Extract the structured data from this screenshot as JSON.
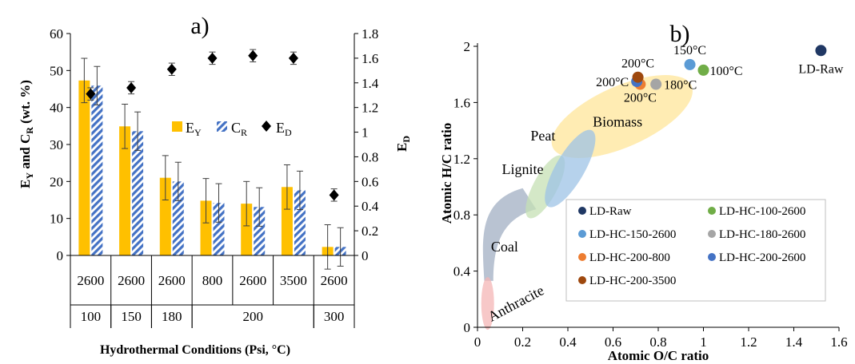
{
  "chart_data": [
    {
      "type": "bar",
      "panel_label": "a)",
      "xlabel": "Hydrothermal Conditions (Psi, °C)",
      "categories": [
        {
          "pressure": "2600",
          "temperature": "100"
        },
        {
          "pressure": "2600",
          "temperature": "150"
        },
        {
          "pressure": "2600",
          "temperature": "180"
        },
        {
          "pressure": "800",
          "temperature": "200"
        },
        {
          "pressure": "2600",
          "temperature": "200"
        },
        {
          "pressure": "3500",
          "temperature": "200"
        },
        {
          "pressure": "2600",
          "temperature": "300"
        }
      ],
      "temperature_groups": [
        "100",
        "150",
        "180",
        "200",
        "300"
      ],
      "ylabel_left": {
        "main": "E",
        "sub1": "Y",
        "mid": " and C",
        "sub2": "R",
        "tail": " (wt. %)"
      },
      "ylabel_right": {
        "main": "E",
        "sub": "D"
      },
      "ylim_left": [
        0,
        60
      ],
      "yticks_left": [
        0,
        10,
        20,
        30,
        40,
        50,
        60
      ],
      "ylim_right": [
        0,
        1.8
      ],
      "yticks_right": [
        "0",
        "0.2",
        "0.4",
        "0.6",
        "0.8",
        "1",
        "1.2",
        "1.4",
        "1.6",
        "1.8"
      ],
      "series": [
        {
          "name": {
            "main": "E",
            "sub": "Y"
          },
          "axis": "left",
          "kind": "bar",
          "color": "#FFC000",
          "values": [
            47.3,
            34.9,
            21.0,
            14.8,
            14.0,
            18.5,
            2.3
          ],
          "errors": [
            6.0,
            6.0,
            6.0,
            6.0,
            6.0,
            6.0,
            6.0
          ]
        },
        {
          "name": {
            "main": "C",
            "sub": "R"
          },
          "axis": "left",
          "kind": "bar",
          "color": "#4472C4",
          "pattern": "diagonal-stripes",
          "values": [
            45.9,
            33.6,
            20.0,
            14.2,
            13.1,
            17.6,
            2.3
          ],
          "errors": [
            5.2,
            5.2,
            5.2,
            5.2,
            5.2,
            5.2,
            5.2
          ]
        },
        {
          "name": {
            "main": "E",
            "sub": "D"
          },
          "axis": "right",
          "kind": "marker",
          "marker": "diamond",
          "color": "#000000",
          "values": [
            1.31,
            1.36,
            1.51,
            1.6,
            1.62,
            1.6,
            0.49
          ],
          "errors": [
            0.05,
            0.05,
            0.05,
            0.05,
            0.05,
            0.05,
            0.05
          ]
        }
      ],
      "legend_position": "center-right"
    },
    {
      "type": "scatter",
      "panel_label": "b)",
      "xlabel": "Atomic O/C ratio",
      "ylabel": "Atomic H/C ratio",
      "xlim": [
        0,
        1.6
      ],
      "ylim": [
        0,
        2
      ],
      "xticks": [
        "0",
        "0.2",
        "0.4",
        "0.6",
        "0.8",
        "1",
        "1.2",
        "1.4",
        "1.6"
      ],
      "yticks": [
        "0",
        "0.4",
        "0.8",
        "1.2",
        "1.6",
        "2"
      ],
      "series": [
        {
          "name": "LD-Raw",
          "color": "#203864",
          "points": [
            {
              "x": 1.52,
              "y": 1.97
            }
          ]
        },
        {
          "name": "LD-HC-100-2600",
          "color": "#70AD47",
          "points": [
            {
              "x": 1.0,
              "y": 1.83
            }
          ]
        },
        {
          "name": "LD-HC-150-2600",
          "color": "#5B9BD5",
          "points": [
            {
              "x": 0.94,
              "y": 1.87
            }
          ]
        },
        {
          "name": "LD-HC-180-2600",
          "color": "#A5A5A5",
          "points": [
            {
              "x": 0.79,
              "y": 1.73
            }
          ]
        },
        {
          "name": "LD-HC-200-800",
          "color": "#ED7D31",
          "points": [
            {
              "x": 0.72,
              "y": 1.73
            }
          ]
        },
        {
          "name": "LD-HC-200-2600",
          "color": "#4472C4",
          "points": [
            {
              "x": 0.705,
              "y": 1.75
            }
          ]
        },
        {
          "name": "LD-HC-200-3500",
          "color": "#9E480E",
          "points": [
            {
              "x": 0.71,
              "y": 1.78
            }
          ]
        }
      ],
      "point_labels": [
        {
          "text": "LD-Raw",
          "x": 1.52,
          "y": 1.97
        },
        {
          "text": "150°C",
          "x": 0.94,
          "y": 1.87
        },
        {
          "text": "100°C",
          "x": 1.0,
          "y": 1.83
        },
        {
          "text": "200°C",
          "x": 0.71,
          "y": 1.78
        },
        {
          "text": "200°C",
          "x": 0.705,
          "y": 1.75
        },
        {
          "text": "180°C",
          "x": 0.79,
          "y": 1.73
        },
        {
          "text": "200°C",
          "x": 0.72,
          "y": 1.73
        }
      ],
      "regions": [
        {
          "name": "Biomass",
          "color": "#FFE699",
          "center_x": 0.64,
          "center_y": 1.5
        },
        {
          "name": "Peat",
          "color": "#9DC3E6",
          "center_x": 0.41,
          "center_y": 1.13
        },
        {
          "name": "Lignite",
          "color": "#C5E0B4",
          "center_x": 0.3,
          "center_y": 1.0
        },
        {
          "name": "Coal",
          "color": "#ADB9CA",
          "center_x": 0.1,
          "center_y": 0.75
        },
        {
          "name": "Anthracite",
          "color": "#F4B6B6",
          "center_x": 0.045,
          "center_y": 0.17
        }
      ],
      "legend_position": "bottom-right"
    }
  ]
}
